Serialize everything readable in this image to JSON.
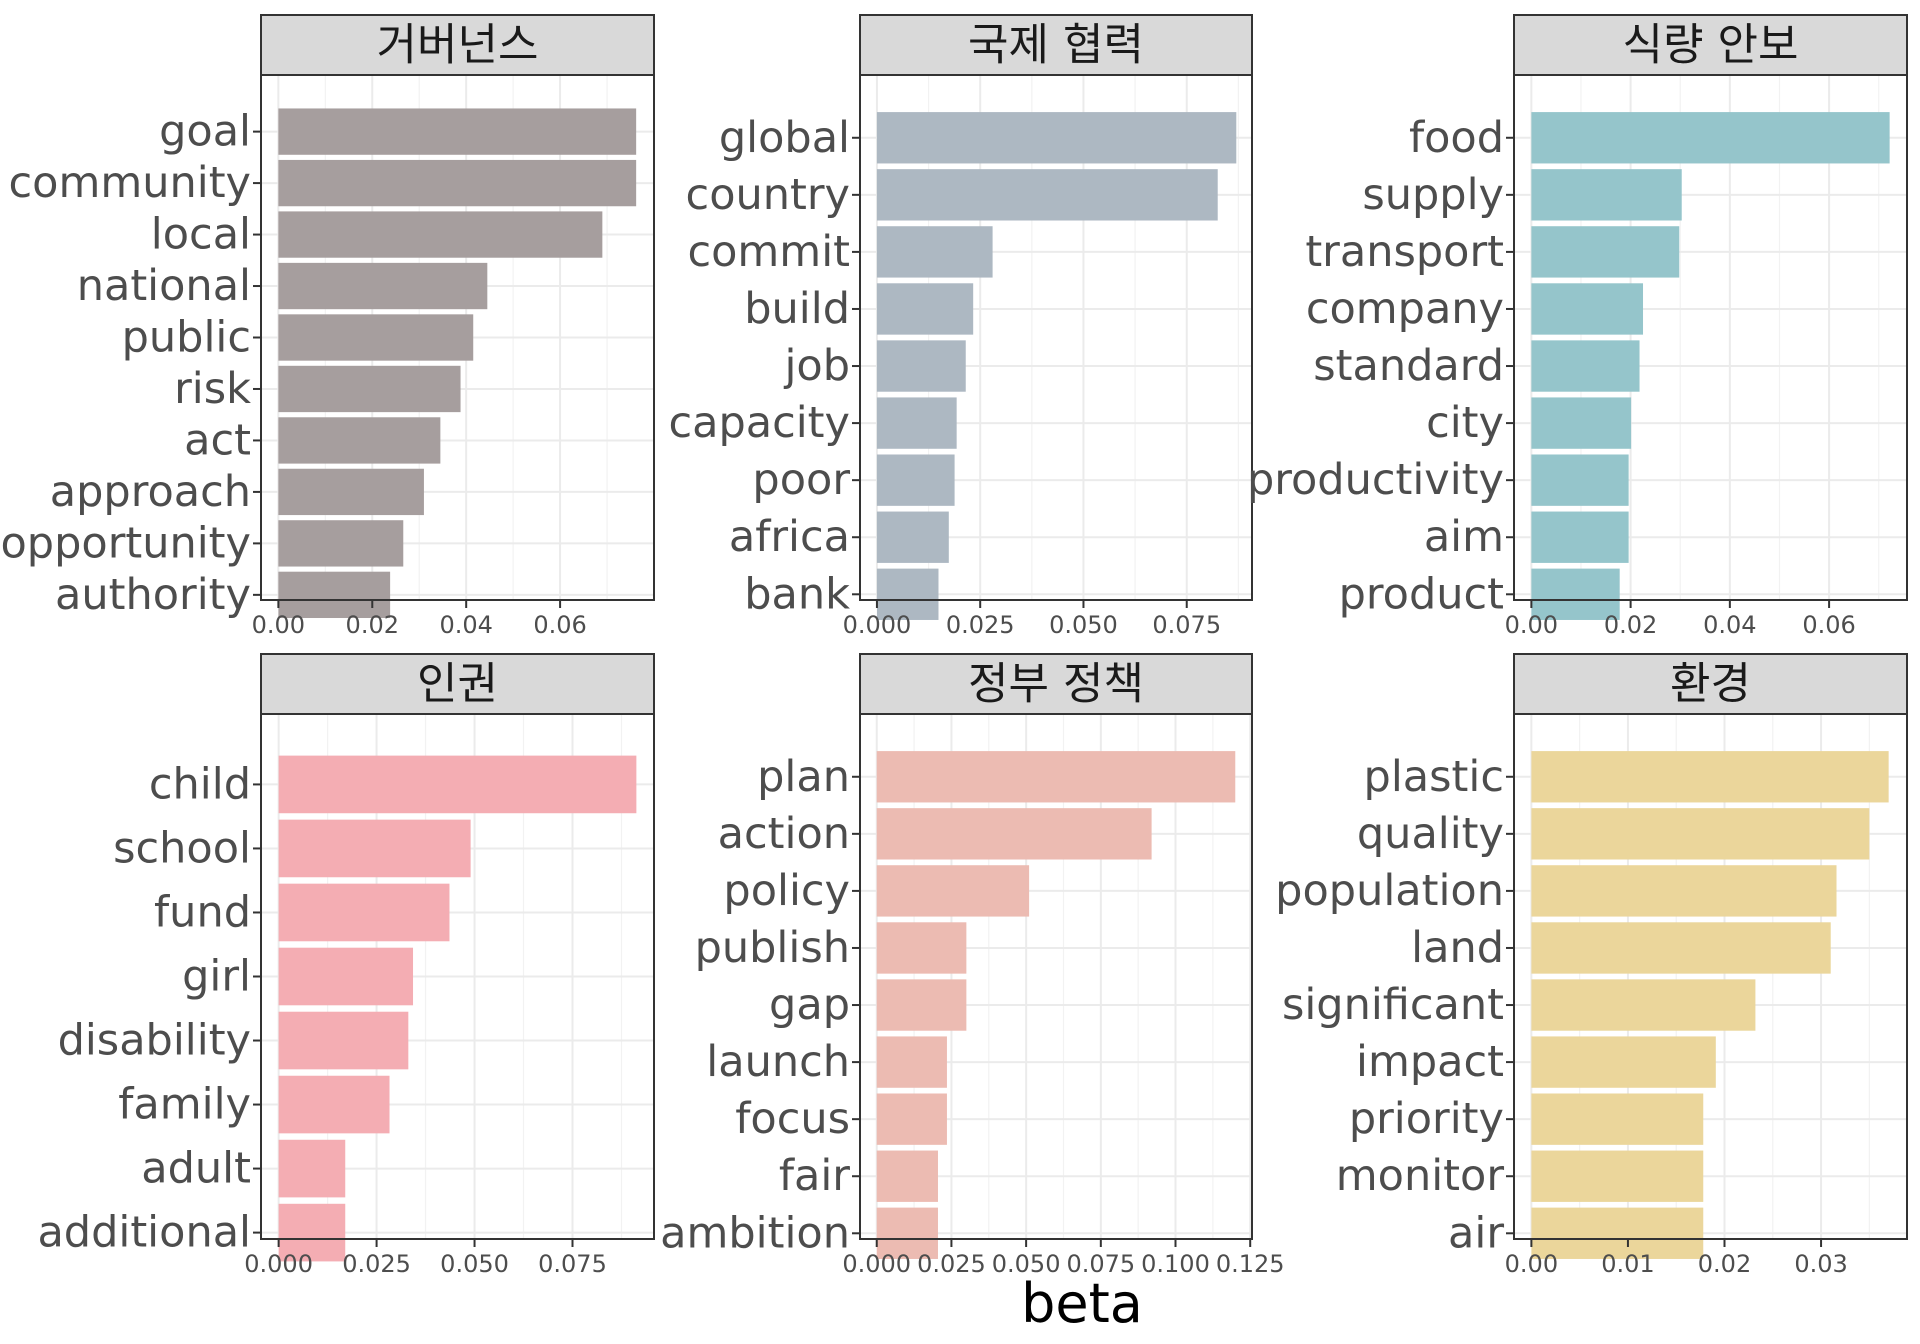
{
  "x_axis_label": "beta",
  "chart_data": [
    {
      "type": "bar",
      "title": "거버넌스",
      "color": "#a69e9e",
      "categories": [
        "goal",
        "community",
        "local",
        "national",
        "public",
        "risk",
        "act",
        "approach",
        "opportunity",
        "authority"
      ],
      "values": [
        0.0762,
        0.0762,
        0.069,
        0.0445,
        0.0415,
        0.0388,
        0.0345,
        0.031,
        0.0266,
        0.0238
      ],
      "xlim": [
        -0.0037,
        0.08
      ],
      "xticks": [
        0,
        0.02,
        0.04,
        0.06
      ],
      "xtick_labels": [
        "0.00",
        "0.02",
        "0.04",
        "0.06"
      ],
      "xlabel": "beta"
    },
    {
      "type": "bar",
      "title": "국제 협력",
      "color": "#adb8c2",
      "categories": [
        "global",
        "country",
        "commit",
        "build",
        "job",
        "capacity",
        "poor",
        "africa",
        "bank"
      ],
      "values": [
        0.087,
        0.0825,
        0.028,
        0.0233,
        0.0215,
        0.0193,
        0.0188,
        0.0174,
        0.0149
      ],
      "xlim": [
        -0.0041,
        0.0908
      ],
      "xticks": [
        0,
        0.025,
        0.05,
        0.075
      ],
      "xtick_labels": [
        "0.000",
        "0.025",
        "0.050",
        "0.075"
      ],
      "xlabel": "beta"
    },
    {
      "type": "bar",
      "title": "식량 안보",
      "color": "#95c5cb",
      "categories": [
        "food",
        "supply",
        "transport",
        "company",
        "standard",
        "city",
        "productivity",
        "aim",
        "product"
      ],
      "values": [
        0.0722,
        0.0303,
        0.0298,
        0.0225,
        0.0218,
        0.0201,
        0.0196,
        0.0196,
        0.0178
      ],
      "xlim": [
        -0.0035,
        0.0757
      ],
      "xticks": [
        0,
        0.02,
        0.04,
        0.06
      ],
      "xtick_labels": [
        "0.00",
        "0.02",
        "0.04",
        "0.06"
      ],
      "xlabel": "beta"
    },
    {
      "type": "bar",
      "title": "인권",
      "color": "#f4adb3",
      "categories": [
        "child",
        "school",
        "fund",
        "girl",
        "disability",
        "family",
        "adult",
        "additional"
      ],
      "values": [
        0.0913,
        0.049,
        0.0436,
        0.0343,
        0.0331,
        0.0283,
        0.017,
        0.017
      ],
      "xlim": [
        -0.0045,
        0.0958
      ],
      "xticks": [
        0,
        0.025,
        0.05,
        0.075
      ],
      "xtick_labels": [
        "0.000",
        "0.025",
        "0.050",
        "0.075"
      ],
      "xlabel": "beta"
    },
    {
      "type": "bar",
      "title": "정부 정책",
      "color": "#ecbbb2",
      "categories": [
        "plan",
        "action",
        "policy",
        "publish",
        "gap",
        "launch",
        "focus",
        "fair",
        "ambition"
      ],
      "values": [
        0.12,
        0.092,
        0.051,
        0.03,
        0.03,
        0.0235,
        0.0235,
        0.0205,
        0.0205
      ],
      "xlim": [
        -0.0056,
        0.1256
      ],
      "xticks": [
        0,
        0.025,
        0.05,
        0.075,
        0.1,
        0.125
      ],
      "xtick_labels": [
        "0.000",
        "0.025",
        "0.050",
        "0.075",
        "0.100",
        "0.125"
      ],
      "xlabel": "beta"
    },
    {
      "type": "bar",
      "title": "환경",
      "color": "#ebd69b",
      "categories": [
        "plastic",
        "quality",
        "population",
        "land",
        "significant",
        "impact",
        "priority",
        "monitor",
        "air"
      ],
      "values": [
        0.037,
        0.035,
        0.0316,
        0.031,
        0.0232,
        0.0191,
        0.0178,
        0.0178,
        0.0178
      ],
      "xlim": [
        -0.0018,
        0.0389
      ],
      "xticks": [
        0,
        0.01,
        0.02,
        0.03
      ],
      "xtick_labels": [
        "0.00",
        "0.01",
        "0.02",
        "0.03"
      ],
      "xlabel": "beta"
    }
  ]
}
